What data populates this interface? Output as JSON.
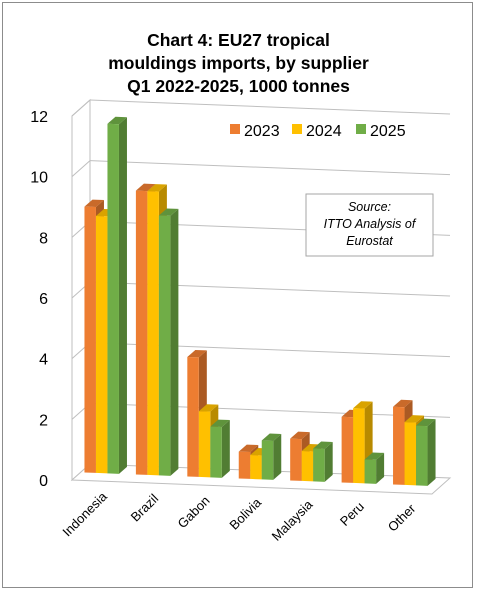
{
  "chart_data": {
    "type": "bar",
    "title_lines": [
      "Chart 4: EU27 tropical",
      "mouldings imports, by supplier",
      "Q1 2022-2025, 1000 tonnes"
    ],
    "categories": [
      "Indonesia",
      "Brazil",
      "Gabon",
      "Bolivia",
      "Malaysia",
      "Peru",
      "Other"
    ],
    "series": [
      {
        "name": "2023",
        "values": [
          8.9,
          9.5,
          4.0,
          0.9,
          1.4,
          2.2,
          2.6
        ]
      },
      {
        "name": "2024",
        "values": [
          8.6,
          9.5,
          2.2,
          0.8,
          1.0,
          2.5,
          2.1
        ]
      },
      {
        "name": "2025",
        "values": [
          11.7,
          8.7,
          1.7,
          1.3,
          1.1,
          0.8,
          2.0
        ]
      }
    ],
    "ylim": [
      0,
      12
    ],
    "yticks": [
      "0",
      "2",
      "4",
      "6",
      "8",
      "10",
      "12"
    ],
    "grid": true,
    "legend_position": "top-right",
    "annotation": [
      "Source:",
      "ITTO Analysis of",
      "Eurostat"
    ],
    "colors": {
      "2023": "#ED7D31",
      "2024": "#FFC000",
      "2025": "#70AD47"
    }
  }
}
